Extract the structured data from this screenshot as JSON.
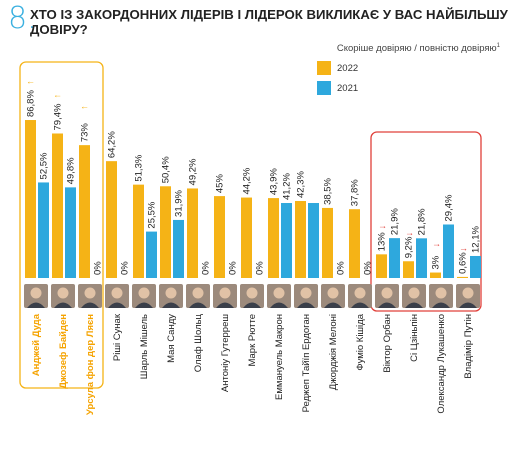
{
  "question": {
    "number": "8.",
    "title": "ХТО ІЗ ЗАКОРДОННИХ ЛІДЕРІВ І ЛІДЕРОК ВИКЛИКАЄ У ВАС НАЙБІЛЬШУ ДОВІРУ?",
    "subtitle": "Скоріше довіряю / повністю довіряю",
    "subtitle_mark": "1"
  },
  "colors": {
    "series_2022": "#f5b316",
    "series_2021": "#2ea8dd",
    "highlight_left": "#f5b316",
    "highlight_right": "#e0403a",
    "arrow_up": "#f5b316",
    "arrow_down": "#e0403a",
    "label_highlight": "#f5a300",
    "label_normal": "#222222"
  },
  "chart_data": {
    "type": "bar",
    "title": "ХТО ІЗ ЗАКОРДОННИХ ЛІДЕРІВ І ЛІДЕРОК ВИКЛИКАЄ У ВАС НАЙБІЛЬШУ ДОВІРУ?",
    "subtitle": "Скоріше довіряю / повністю довіряю",
    "categories": [
      "Анджей Дуда",
      "Джозеф Байден",
      "Урсула фон дер Ляєн",
      "Ріші Сунак",
      "Шарль Мішель",
      "Мая Санду",
      "Олаф Шольц",
      "Антоніу Гутерреш",
      "Марк Рютте",
      "Еммануель Макрон",
      "Реджеп Тайїп Ердоган",
      "Джорджія Мелоні",
      "Фуміо Кішіда",
      "Віктор Орбан",
      "Сі Цзіньпін",
      "Олександр Лукашенко",
      "Владімір Путін"
    ],
    "series": [
      {
        "name": "2022",
        "values": [
          86.8,
          79.4,
          73,
          64.2,
          51.3,
          50.4,
          49.2,
          45,
          44.2,
          43.9,
          42.3,
          38.5,
          37.8,
          13,
          9.2,
          3,
          0.6
        ],
        "labels": [
          "86,8%",
          "79,4%",
          "73%",
          "64,2%",
          "51,3%",
          "50,4%",
          "49,2%",
          "45%",
          "44,2%",
          "43,9%",
          "42,3%",
          "38,5%",
          "37,8%",
          "13%",
          "9,2%",
          "3%",
          "0,6%"
        ]
      },
      {
        "name": "2021",
        "values": [
          52.5,
          49.8,
          0,
          0,
          25.5,
          31.9,
          0,
          0,
          0,
          41.2,
          41.2,
          0,
          0,
          21.9,
          21.8,
          29.4,
          12.1
        ],
        "labels": [
          "52,5%",
          "49,8%",
          "0%",
          "0%",
          "25,5%",
          "31,9%",
          "0%",
          "0%",
          "0%",
          "41,2%",
          "",
          "0%",
          "0%",
          "21,9%",
          "21,8%",
          "29,4%",
          "12,1%"
        ]
      }
    ],
    "trend_up": [
      "Анджей Дуда",
      "Джозеф Байден",
      "Урсула фон дер Ляєн"
    ],
    "trend_down": [
      "Віктор Орбан",
      "Сі Цзіньпін",
      "Олександр Лукашенко",
      "Владімір Путін"
    ],
    "highlight_groups": [
      {
        "color": "orange",
        "categories": [
          "Анджей Дуда",
          "Джозеф Байден",
          "Урсула фон дер Ляєн"
        ]
      },
      {
        "color": "red",
        "categories": [
          "Віктор Орбан",
          "Сі Цзіньпін",
          "Олександр Лукашенко",
          "Владімір Путін"
        ]
      }
    ],
    "ylim": [
      0,
      100
    ],
    "grid": false,
    "legend_position": "top-right"
  }
}
